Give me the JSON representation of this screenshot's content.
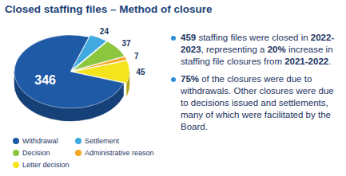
{
  "chart_data": {
    "type": "pie",
    "title": "Closed staffing files – Method of closure",
    "categories": [
      "Withdrawal",
      "Settlement",
      "Decision",
      "Administrative reason",
      "Letter decision"
    ],
    "values": [
      346,
      24,
      37,
      7,
      45
    ],
    "colors": [
      "#1f5aa6",
      "#3fa9e0",
      "#8cc63f",
      "#f5a623",
      "#f4e41c"
    ],
    "data_labels": true,
    "legend": "bottom-left",
    "annotations": [
      [
        "459",
        " staffing files were closed in ",
        "2022-2023",
        ", representing a ",
        "20%",
        " increase in staffing file closures from ",
        "2021-2022",
        "."
      ],
      [
        "75%",
        " of the closures were due to withdrawals. Other closures were due to decisions issued and settlements, many of which were facilitated by the Board."
      ]
    ]
  }
}
